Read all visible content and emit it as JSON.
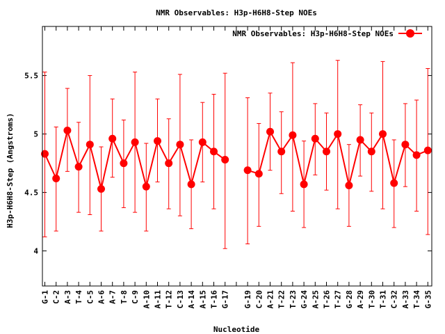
{
  "chart_data": {
    "type": "line",
    "title": "NMR Observables: H3p-H6H8-Step NOEs",
    "xlabel": "Nucleotide",
    "ylabel": "H3p-H6H8-Step (Angstroms)",
    "ylim": [
      3.7,
      5.92
    ],
    "yticks": [
      "4",
      "4.5",
      "5",
      "5.5"
    ],
    "legend_position": "top-right",
    "grid": false,
    "color": "#ff0000",
    "categories": [
      "G-1",
      "C-2",
      "A-3",
      "T-4",
      "C-5",
      "A-6",
      "A-7",
      "T-8",
      "C-9",
      "A-10",
      "A-11",
      "T-12",
      "C-13",
      "A-14",
      "A-15",
      "T-16",
      "G-17",
      "",
      "G-19",
      "C-20",
      "A-21",
      "T-22",
      "T-23",
      "G-24",
      "A-25",
      "T-26",
      "T-27",
      "G-28",
      "A-29",
      "T-30",
      "T-31",
      "C-32",
      "A-33",
      "T-34",
      "G-35"
    ],
    "series": [
      {
        "name": "NMR Observables: H3p-H6H8-Step NOEs",
        "values": [
          4.83,
          4.62,
          5.03,
          4.72,
          4.91,
          4.53,
          4.96,
          4.75,
          4.93,
          4.55,
          4.94,
          4.75,
          4.91,
          4.57,
          4.93,
          4.85,
          4.78,
          null,
          4.69,
          4.66,
          5.02,
          4.85,
          4.99,
          4.57,
          4.96,
          4.85,
          5.0,
          4.56,
          4.95,
          4.85,
          5.0,
          4.58,
          4.91,
          4.82,
          4.86
        ],
        "err_low": [
          4.12,
          4.17,
          4.68,
          4.33,
          4.31,
          4.17,
          4.63,
          4.37,
          4.33,
          4.17,
          4.59,
          4.36,
          4.3,
          4.19,
          4.59,
          4.36,
          4.02,
          null,
          4.06,
          4.21,
          4.69,
          4.49,
          4.34,
          4.2,
          4.65,
          4.52,
          4.36,
          4.21,
          4.64,
          4.51,
          4.36,
          4.2,
          4.55,
          4.34,
          4.14
        ],
        "err_high": [
          5.53,
          5.06,
          5.39,
          5.1,
          5.5,
          4.89,
          5.3,
          5.12,
          5.53,
          4.92,
          5.3,
          5.13,
          5.51,
          4.95,
          5.27,
          5.34,
          5.52,
          null,
          5.31,
          5.09,
          5.35,
          5.19,
          5.61,
          4.94,
          5.26,
          5.18,
          5.63,
          4.91,
          5.25,
          5.18,
          5.62,
          4.95,
          5.26,
          5.29,
          5.56
        ]
      }
    ]
  }
}
